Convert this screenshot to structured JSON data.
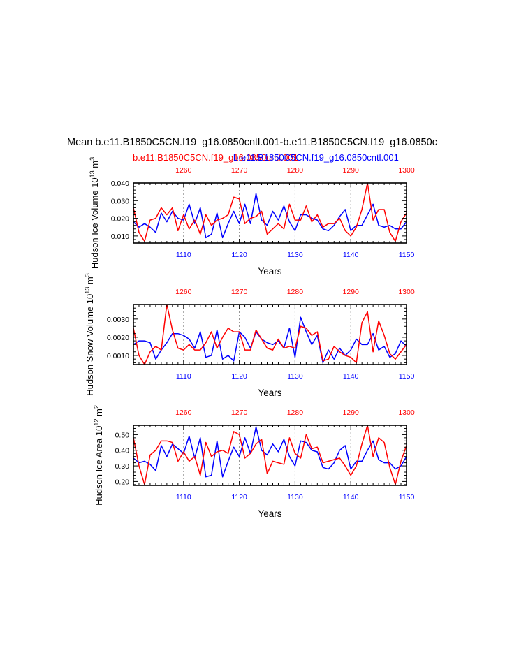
{
  "main_title": "Mean b.e11.B1850C5CN.f19_g16.0850cntl.001-b.e11.B1850C5CN.f19_g16.0850c",
  "legend": {
    "red_label": "b.e11.B1850C5CN.f19_g16.0850cntl.001",
    "blue_label": "b.e11.B1850C5CN.f19_g16.0850cntl.001",
    "red_color": "#ff0000",
    "blue_color": "#0000ff"
  },
  "colors": {
    "red": "#ff0000",
    "blue": "#0000ff",
    "axis": "#000000",
    "grid": "#888888"
  },
  "x_bottom": {
    "label": "Years",
    "range": [
      1101,
      1150
    ],
    "ticks": [
      "1110",
      "1120",
      "1130",
      "1140",
      "1150"
    ]
  },
  "x_top": {
    "range": [
      1251,
      1300
    ],
    "ticks": [
      "1260",
      "1270",
      "1280",
      "1290",
      "1300"
    ]
  },
  "chart_data": [
    {
      "type": "line",
      "title": "",
      "ylabel_main": "Hudson Ice Volume 10",
      "ylabel_exp1": "13",
      "ylabel_unit": " m",
      "ylabel_exp2": "3",
      "xlabel": "Years",
      "ylim": [
        0.006,
        0.04
      ],
      "yticks": [
        "0.010",
        "0.020",
        "0.030",
        "0.040"
      ],
      "ytick_values": [
        0.01,
        0.02,
        0.03,
        0.04
      ],
      "x_bottom": [
        1101,
        1102,
        1103,
        1104,
        1105,
        1106,
        1107,
        1108,
        1109,
        1110,
        1111,
        1112,
        1113,
        1114,
        1115,
        1116,
        1117,
        1118,
        1119,
        1120,
        1121,
        1122,
        1123,
        1124,
        1125,
        1126,
        1127,
        1128,
        1129,
        1130,
        1131,
        1132,
        1133,
        1134,
        1135,
        1136,
        1137,
        1138,
        1139,
        1140,
        1141,
        1142,
        1143,
        1144,
        1145,
        1146,
        1147,
        1148,
        1149,
        1150
      ],
      "series": [
        {
          "name": "blue",
          "color": "#0000ff",
          "values": [
            0.018,
            0.015,
            0.017,
            0.015,
            0.012,
            0.023,
            0.018,
            0.024,
            0.02,
            0.019,
            0.028,
            0.017,
            0.026,
            0.009,
            0.011,
            0.023,
            0.009,
            0.017,
            0.024,
            0.017,
            0.028,
            0.017,
            0.034,
            0.019,
            0.016,
            0.024,
            0.019,
            0.027,
            0.018,
            0.013,
            0.022,
            0.022,
            0.02,
            0.019,
            0.014,
            0.013,
            0.016,
            0.021,
            0.025,
            0.013,
            0.016,
            0.016,
            0.022,
            0.028,
            0.016,
            0.015,
            0.016,
            0.014,
            0.014,
            0.018
          ]
        },
        {
          "name": "red",
          "color": "#ff0000",
          "values": [
            0.026,
            0.012,
            0.007,
            0.019,
            0.02,
            0.026,
            0.022,
            0.026,
            0.013,
            0.022,
            0.014,
            0.019,
            0.011,
            0.022,
            0.016,
            0.019,
            0.02,
            0.022,
            0.032,
            0.031,
            0.017,
            0.02,
            0.021,
            0.024,
            0.011,
            0.014,
            0.017,
            0.014,
            0.028,
            0.019,
            0.019,
            0.027,
            0.018,
            0.022,
            0.015,
            0.017,
            0.017,
            0.02,
            0.013,
            0.01,
            0.015,
            0.025,
            0.04,
            0.019,
            0.025,
            0.025,
            0.012,
            0.007,
            0.018,
            0.023
          ]
        }
      ]
    },
    {
      "type": "line",
      "title": "",
      "ylabel_main": "Hudson Snow Volume 10",
      "ylabel_exp1": "13",
      "ylabel_unit": " m",
      "ylabel_exp2": "3",
      "xlabel": "Years",
      "ylim": [
        0.0005,
        0.0038
      ],
      "yticks": [
        "0.0010",
        "0.0020",
        "0.0030"
      ],
      "ytick_values": [
        0.001,
        0.002,
        0.003
      ],
      "x_bottom": [
        1101,
        1102,
        1103,
        1104,
        1105,
        1106,
        1107,
        1108,
        1109,
        1110,
        1111,
        1112,
        1113,
        1114,
        1115,
        1116,
        1117,
        1118,
        1119,
        1120,
        1121,
        1122,
        1123,
        1124,
        1125,
        1126,
        1127,
        1128,
        1129,
        1130,
        1131,
        1132,
        1133,
        1134,
        1135,
        1136,
        1137,
        1138,
        1139,
        1140,
        1141,
        1142,
        1143,
        1144,
        1145,
        1146,
        1147,
        1148,
        1149,
        1150
      ],
      "series": [
        {
          "name": "blue",
          "color": "#0000ff",
          "values": [
            0.0016,
            0.0018,
            0.0018,
            0.0017,
            0.0008,
            0.0013,
            0.0017,
            0.0022,
            0.0022,
            0.0021,
            0.0019,
            0.0014,
            0.0023,
            0.0009,
            0.001,
            0.0024,
            0.0008,
            0.001,
            0.0007,
            0.0023,
            0.002,
            0.0014,
            0.0023,
            0.0019,
            0.0017,
            0.0016,
            0.0018,
            0.0014,
            0.0025,
            0.0009,
            0.0031,
            0.0023,
            0.0016,
            0.0021,
            0.0006,
            0.0013,
            0.0008,
            0.0014,
            0.001,
            0.0013,
            0.0019,
            0.0016,
            0.0016,
            0.0022,
            0.0013,
            0.0015,
            0.0009,
            0.0011,
            0.0018,
            0.0015
          ]
        },
        {
          "name": "red",
          "color": "#ff0000",
          "values": [
            0.0025,
            0.001,
            0.0005,
            0.0012,
            0.0015,
            0.0013,
            0.0038,
            0.0024,
            0.0014,
            0.0013,
            0.0016,
            0.0013,
            0.0013,
            0.0017,
            0.0023,
            0.0014,
            0.002,
            0.0025,
            0.0023,
            0.0023,
            0.0013,
            0.0013,
            0.0024,
            0.0019,
            0.0014,
            0.0013,
            0.0019,
            0.0014,
            0.0015,
            0.0014,
            0.0026,
            0.0025,
            0.0021,
            0.0023,
            0.0007,
            0.0008,
            0.0015,
            0.0012,
            0.001,
            0.0009,
            0.0006,
            0.0028,
            0.0034,
            0.0012,
            0.0029,
            0.0021,
            0.0011,
            0.0008,
            0.0012,
            0.0016
          ]
        }
      ]
    },
    {
      "type": "line",
      "title": "",
      "ylabel_main": "Hudson Ice Area 10",
      "ylabel_exp1": "12",
      "ylabel_unit": " m",
      "ylabel_exp2": "2",
      "xlabel": "Years",
      "ylim": [
        0.175,
        0.56
      ],
      "yticks": [
        "0.20",
        "0.30",
        "0.40",
        "0.50"
      ],
      "ytick_values": [
        0.2,
        0.3,
        0.4,
        0.5
      ],
      "x_bottom": [
        1101,
        1102,
        1103,
        1104,
        1105,
        1106,
        1107,
        1108,
        1109,
        1110,
        1111,
        1112,
        1113,
        1114,
        1115,
        1116,
        1117,
        1118,
        1119,
        1120,
        1121,
        1122,
        1123,
        1124,
        1125,
        1126,
        1127,
        1128,
        1129,
        1130,
        1131,
        1132,
        1133,
        1134,
        1135,
        1136,
        1137,
        1138,
        1139,
        1140,
        1141,
        1142,
        1143,
        1144,
        1145,
        1146,
        1147,
        1148,
        1149,
        1150
      ],
      "series": [
        {
          "name": "blue",
          "color": "#0000ff",
          "values": [
            0.35,
            0.32,
            0.33,
            0.31,
            0.27,
            0.43,
            0.36,
            0.44,
            0.41,
            0.38,
            0.49,
            0.35,
            0.48,
            0.23,
            0.24,
            0.46,
            0.23,
            0.33,
            0.42,
            0.36,
            0.48,
            0.38,
            0.55,
            0.4,
            0.37,
            0.44,
            0.39,
            0.47,
            0.36,
            0.3,
            0.46,
            0.45,
            0.4,
            0.39,
            0.29,
            0.28,
            0.32,
            0.4,
            0.43,
            0.28,
            0.33,
            0.33,
            0.4,
            0.46,
            0.34,
            0.32,
            0.32,
            0.28,
            0.3,
            0.36
          ]
        },
        {
          "name": "red",
          "color": "#ff0000",
          "values": [
            0.48,
            0.3,
            0.18,
            0.37,
            0.4,
            0.46,
            0.46,
            0.45,
            0.33,
            0.39,
            0.33,
            0.36,
            0.24,
            0.45,
            0.36,
            0.39,
            0.4,
            0.38,
            0.52,
            0.5,
            0.35,
            0.38,
            0.44,
            0.47,
            0.25,
            0.33,
            0.32,
            0.31,
            0.48,
            0.38,
            0.35,
            0.5,
            0.41,
            0.42,
            0.32,
            0.33,
            0.34,
            0.35,
            0.3,
            0.24,
            0.3,
            0.44,
            0.56,
            0.36,
            0.48,
            0.45,
            0.29,
            0.18,
            0.33,
            0.43
          ]
        }
      ]
    }
  ]
}
